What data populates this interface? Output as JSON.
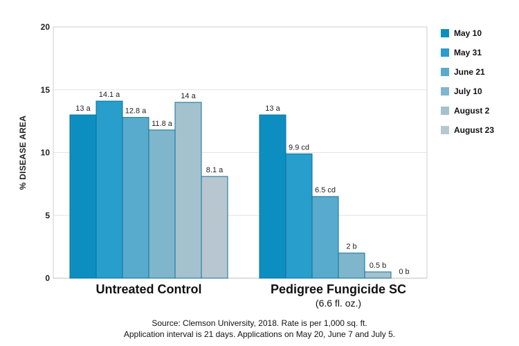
{
  "chart_data": {
    "type": "bar",
    "ylabel": "% DISEASE AREA",
    "ylim": [
      0,
      20
    ],
    "yticks": [
      0,
      5,
      10,
      15,
      20
    ],
    "grid": true,
    "legend_position": "right",
    "groups": [
      {
        "label": "Untreated Control",
        "sublabel": ""
      },
      {
        "label": "Pedigree Fungicide SC",
        "sublabel": "(6.6 fl. oz.)"
      }
    ],
    "series": [
      {
        "name": "May 10",
        "color": "#0c8fc0",
        "values": [
          13,
          13
        ],
        "labels": [
          "13 a",
          "13 a"
        ]
      },
      {
        "name": "May 31",
        "color": "#279ecb",
        "values": [
          14.1,
          9.9
        ],
        "labels": [
          "14.1 a",
          "9.9 cd"
        ]
      },
      {
        "name": "June 21",
        "color": "#58abcc",
        "values": [
          12.8,
          6.5
        ],
        "labels": [
          "12.8 a",
          "6.5 cd"
        ]
      },
      {
        "name": "July 10",
        "color": "#80b6cb",
        "values": [
          11.8,
          2
        ],
        "labels": [
          "11.8 a",
          "2 b"
        ]
      },
      {
        "name": "August 2",
        "color": "#a4c1ce",
        "values": [
          14,
          0.5
        ],
        "labels": [
          "14 a",
          "0.5 b"
        ]
      },
      {
        "name": "August 23",
        "color": "#b8c7cf",
        "values": [
          8.1,
          0
        ],
        "labels": [
          "8.1 a",
          "0 b"
        ]
      }
    ]
  },
  "source_note": {
    "line1": "Source: Clemson University, 2018. Rate is per 1,000 sq. ft.",
    "line2": "Application interval is 21 days. Applications on May 20, June 7 and July 5."
  }
}
